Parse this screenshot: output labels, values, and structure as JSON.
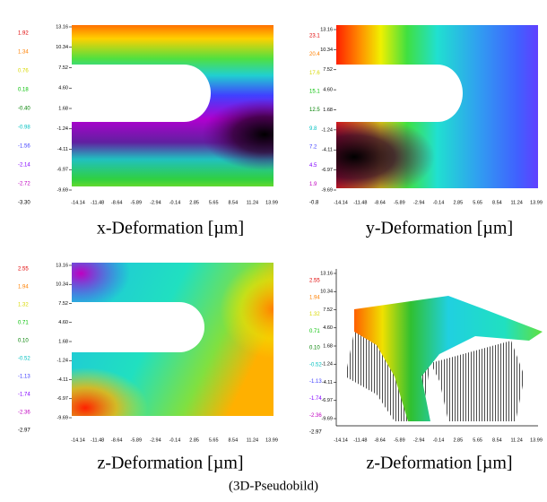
{
  "panels": [
    {
      "caption": "x-Deformation [µm]",
      "legend": [
        "1.92",
        "1.34",
        "0.76",
        "0.18",
        "-0.40",
        "-0.98",
        "-1.56",
        "-2.14",
        "-2.72",
        "-3.30"
      ],
      "yticks": [
        "13.16",
        "10.34",
        "7.52",
        "4.60",
        "1.68",
        "-1.24",
        "-4.11",
        "-6.97",
        "-9.69"
      ],
      "xticks": [
        "-14.14",
        "-11.48",
        "-8.64",
        "-5.89",
        "-2.94",
        "-0.14",
        "2.85",
        "5.65",
        "8.54",
        "11.24",
        "13.99"
      ]
    },
    {
      "caption": "y-Deformation [µm]",
      "legend": [
        "23.1",
        "20.4",
        "17.6",
        "15.1",
        "12.5",
        "9.8",
        "7.2",
        "4.5",
        "1.9",
        "-0.8"
      ],
      "yticks": [
        "13.16",
        "10.34",
        "7.52",
        "4.60",
        "1.68",
        "-1.24",
        "-4.11",
        "-6.97",
        "-9.69"
      ],
      "xticks": [
        "-14.14",
        "-11.48",
        "-8.64",
        "-5.89",
        "-2.94",
        "-0.14",
        "2.85",
        "5.65",
        "8.54",
        "11.24",
        "13.99"
      ]
    },
    {
      "caption": "z-Deformation [µm]",
      "legend": [
        "2.55",
        "1.94",
        "1.32",
        "0.71",
        "0.10",
        "-0.52",
        "-1.13",
        "-1.74",
        "-2.36",
        "-2.97"
      ],
      "yticks": [
        "13.16",
        "10.34",
        "7.52",
        "4.60",
        "1.68",
        "-1.24",
        "-4.11",
        "-6.97",
        "-9.69"
      ],
      "xticks": [
        "-14.14",
        "-11.48",
        "-8.64",
        "-5.89",
        "-2.94",
        "-0.14",
        "2.85",
        "5.65",
        "8.54",
        "11.24",
        "13.99"
      ]
    },
    {
      "caption": "z-Deformation [µm]",
      "legend": [
        "2.55",
        "1.94",
        "1.32",
        "0.71",
        "0.10",
        "-0.52",
        "-1.13",
        "-1.74",
        "-2.36",
        "-2.97"
      ],
      "yticks": [
        "13.16",
        "10.34",
        "7.52",
        "4.60",
        "1.68",
        "-1.24",
        "-4.11",
        "-6.97",
        "-9.69"
      ],
      "xticks": [
        "-14.14",
        "-11.48",
        "-8.64",
        "-5.89",
        "-2.94",
        "-0.14",
        "2.85",
        "5.65",
        "8.54",
        "11.24",
        "13.99"
      ]
    }
  ],
  "subcaption": "(3D-Pseudobild)"
}
